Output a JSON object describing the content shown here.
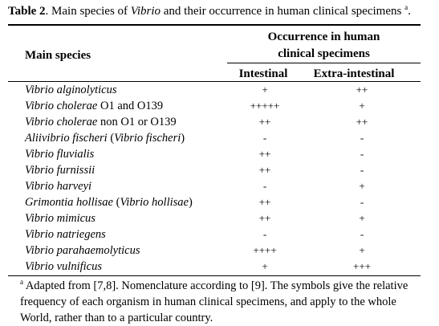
{
  "caption": {
    "label": "Table 2",
    "text_prefix": ". Main species of ",
    "text_italic": "Vibrio",
    "text_suffix": " and their occurrence in human clinical specimens ",
    "footnote_mark": "a",
    "end": "."
  },
  "header": {
    "main_species": "Main species",
    "occurrence_line1": "Occurrence in human",
    "occurrence_line2": "clinical specimens",
    "col_intestinal": "Intestinal",
    "col_extraintestinal": "Extra-intestinal"
  },
  "rows": [
    {
      "parts": [
        {
          "t": "Vibrio alginolyticus",
          "i": true
        }
      ],
      "intestinal": "+",
      "extra": "++"
    },
    {
      "parts": [
        {
          "t": "Vibrio cholerae",
          "i": true
        },
        {
          "t": " O1 and O139",
          "i": false
        }
      ],
      "intestinal": "+++++",
      "extra": "+"
    },
    {
      "parts": [
        {
          "t": "Vibrio cholerae",
          "i": true
        },
        {
          "t": " non O1 or O139",
          "i": false
        }
      ],
      "intestinal": "++",
      "extra": "++"
    },
    {
      "parts": [
        {
          "t": "Aliivibrio fischeri",
          "i": true
        },
        {
          "t": " (",
          "i": false
        },
        {
          "t": "Vibrio fischeri",
          "i": true
        },
        {
          "t": ")",
          "i": false
        }
      ],
      "intestinal": "-",
      "extra": "-"
    },
    {
      "parts": [
        {
          "t": "Vibrio fluvialis",
          "i": true
        }
      ],
      "intestinal": "++",
      "extra": "-"
    },
    {
      "parts": [
        {
          "t": "Vibrio furnissii",
          "i": true
        }
      ],
      "intestinal": "++",
      "extra": "-"
    },
    {
      "parts": [
        {
          "t": "Vibrio harveyi",
          "i": true
        }
      ],
      "intestinal": "-",
      "extra": "+"
    },
    {
      "parts": [
        {
          "t": "Grimontia hollisae",
          "i": true
        },
        {
          "t": " (",
          "i": false
        },
        {
          "t": "Vibrio hollisae",
          "i": true
        },
        {
          "t": ")",
          "i": false
        }
      ],
      "intestinal": "++",
      "extra": "-"
    },
    {
      "parts": [
        {
          "t": "Vibrio mimicus",
          "i": true
        }
      ],
      "intestinal": "++",
      "extra": "+"
    },
    {
      "parts": [
        {
          "t": "Vibrio natriegens",
          "i": true
        }
      ],
      "intestinal": "-",
      "extra": "-"
    },
    {
      "parts": [
        {
          "t": "Vibrio parahaemolyticus",
          "i": true
        }
      ],
      "intestinal": "++++",
      "extra": "+"
    },
    {
      "parts": [
        {
          "t": "Vibrio vulnificus",
          "i": true
        }
      ],
      "intestinal": "+",
      "extra": "+++"
    }
  ],
  "footnote": {
    "mark": "a",
    "line1": " Adapted from [7,8]. Nomenclature according to [9]. The symbols give the relative",
    "line2": "frequency of each organism in human clinical specimens, and apply to the whole",
    "line3": "World, rather than to a particular country."
  }
}
